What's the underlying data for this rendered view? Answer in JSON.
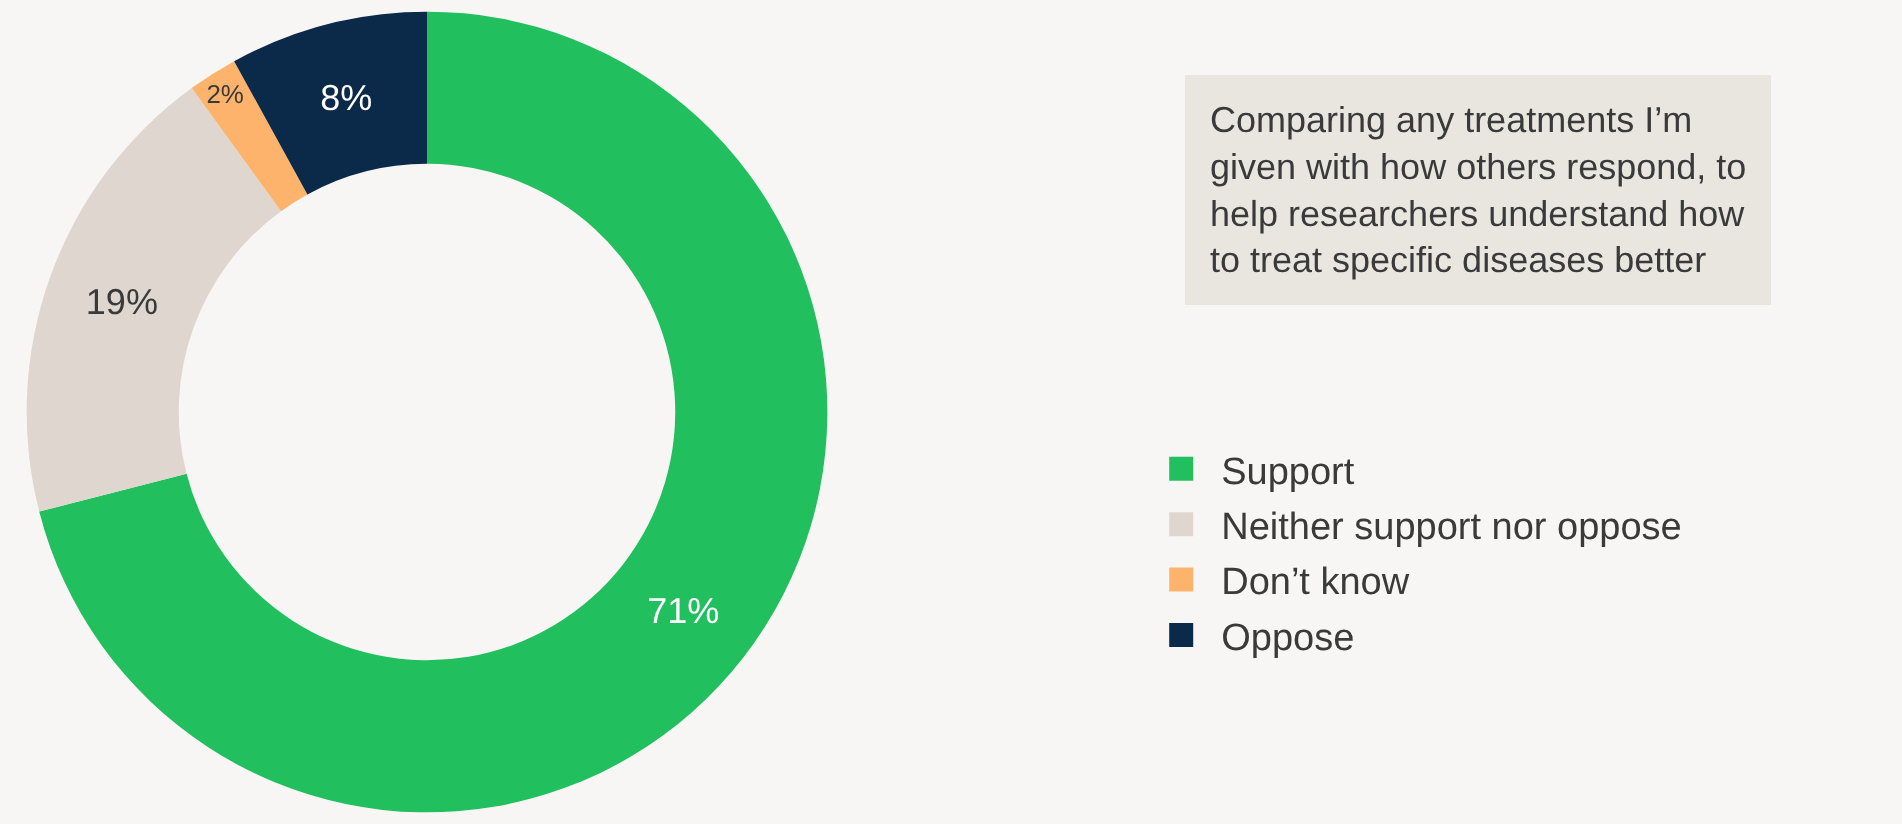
{
  "chart_data": {
    "type": "donut",
    "title": "Comparing any treatments I’m given with how others respond, to help researchers understand how to treat specific diseases better",
    "categories": [
      "Support",
      "Neither support nor oppose",
      "Don’t know",
      "Oppose"
    ],
    "values": [
      71,
      19,
      2,
      8
    ],
    "value_labels": [
      "71%",
      "19%",
      "2%",
      "8%"
    ],
    "colors": [
      "#22bf5f",
      "#dfd7cf",
      "#fdb36b",
      "#0b2a4a"
    ],
    "legend": "right"
  }
}
